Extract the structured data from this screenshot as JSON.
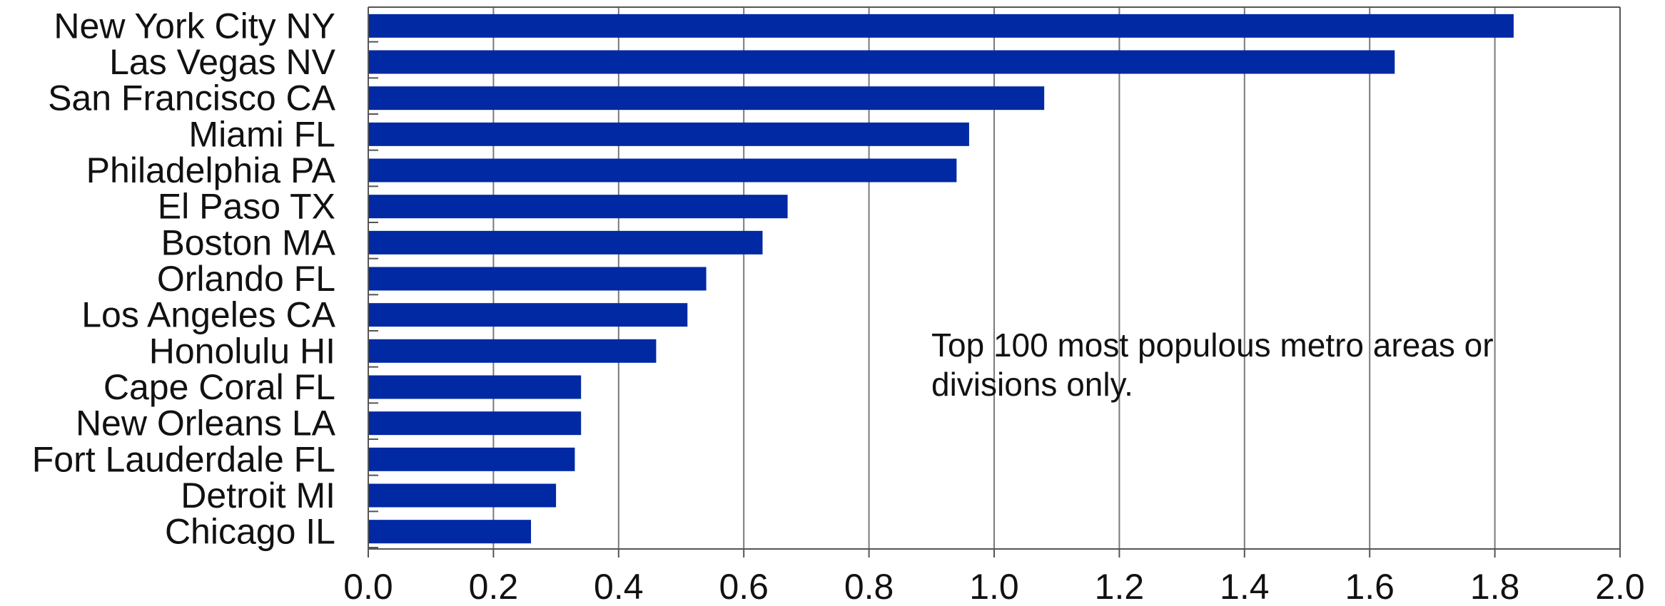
{
  "chart_data": {
    "type": "bar",
    "orientation": "horizontal",
    "title": "",
    "xlabel": "",
    "ylabel": "",
    "categories": [
      "New York City NY",
      "Las Vegas NV",
      "San Francisco CA",
      "Miami FL",
      "Philadelphia PA",
      "El Paso TX",
      "Boston MA",
      "Orlando FL",
      "Los Angeles CA",
      "Honolulu HI",
      "Cape Coral FL",
      "New Orleans LA",
      "Fort Lauderdale FL",
      "Detroit MI",
      "Chicago IL"
    ],
    "values": [
      1.83,
      1.64,
      1.08,
      0.96,
      0.94,
      0.67,
      0.63,
      0.54,
      0.51,
      0.46,
      0.34,
      0.34,
      0.33,
      0.3,
      0.26
    ],
    "xlim": [
      0.0,
      2.0
    ],
    "xticks": [
      "0.0",
      "0.2",
      "0.4",
      "0.6",
      "0.8",
      "1.0",
      "1.2",
      "1.4",
      "1.6",
      "1.8",
      "2.0"
    ],
    "grid": "vertical",
    "bar_color": "#0029a3",
    "annotation": {
      "lines": [
        "Top 100 most populous metro areas or",
        "divisions only."
      ]
    }
  }
}
